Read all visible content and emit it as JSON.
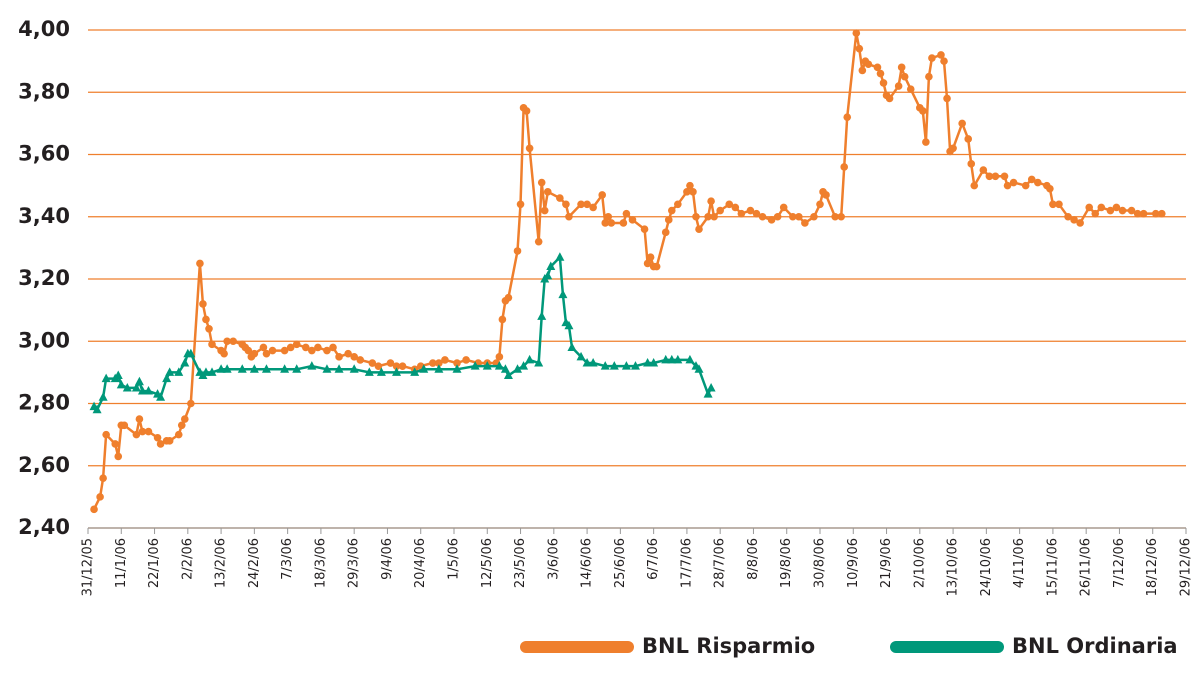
{
  "chart_data": {
    "type": "line",
    "xlim": [
      "31/12/05",
      "29/12/06"
    ],
    "xticks": [
      "31/12/05",
      "11/1/06",
      "22/1/06",
      "2/2/06",
      "13/2/06",
      "24/2/06",
      "7/3/06",
      "18/3/06",
      "29/3/06",
      "9/4/06",
      "20/4/06",
      "1/5/06",
      "12/5/06",
      "23/5/06",
      "3/6/06",
      "14/6/06",
      "25/6/06",
      "6/7/06",
      "17/7/06",
      "28/7/06",
      "8/8/06",
      "19/8/06",
      "30/8/06",
      "10/9/06",
      "21/9/06",
      "2/10/06",
      "13/10/06",
      "24/10/06",
      "4/11/06",
      "15/11/06",
      "26/11/06",
      "7/12/06",
      "18/12/06",
      "29/12/06"
    ],
    "ylim": [
      2.4,
      4.0
    ],
    "yticks": [
      {
        "value": 2.4,
        "label": "2,40"
      },
      {
        "value": 2.6,
        "label": "2,60"
      },
      {
        "value": 2.8,
        "label": "2,80"
      },
      {
        "value": 3.0,
        "label": "3,00"
      },
      {
        "value": 3.2,
        "label": "3,20"
      },
      {
        "value": 3.4,
        "label": "3,40"
      },
      {
        "value": 3.6,
        "label": "3,60"
      },
      {
        "value": 3.8,
        "label": "3,80"
      },
      {
        "value": 4.0,
        "label": "4,00"
      }
    ],
    "grid": true,
    "legend": "bottom",
    "series": [
      {
        "name": "BNL Risparmio",
        "color": "#ef7f2d",
        "marker": "circle",
        "x": [
          "2/1/06",
          "4/1/06",
          "5/1/06",
          "6/1/06",
          "9/1/06",
          "10/1/06",
          "11/1/06",
          "12/1/06",
          "16/1/06",
          "17/1/06",
          "18/1/06",
          "20/1/06",
          "23/1/06",
          "24/1/06",
          "26/1/06",
          "27/1/06",
          "30/1/06",
          "31/1/06",
          "1/2/06",
          "3/2/06",
          "6/2/06",
          "7/2/06",
          "8/2/06",
          "9/2/06",
          "10/2/06",
          "13/2/06",
          "14/2/06",
          "15/2/06",
          "17/2/06",
          "20/2/06",
          "21/2/06",
          "22/2/06",
          "23/2/06",
          "24/2/06",
          "27/2/06",
          "28/2/06",
          "2/3/06",
          "6/3/06",
          "8/3/06",
          "10/3/06",
          "13/3/06",
          "15/3/06",
          "17/3/06",
          "20/3/06",
          "22/3/06",
          "24/3/06",
          "27/3/06",
          "29/3/06",
          "31/3/06",
          "4/4/06",
          "6/4/06",
          "10/4/06",
          "12/4/06",
          "14/4/06",
          "18/4/06",
          "20/4/06",
          "24/4/06",
          "26/4/06",
          "28/4/06",
          "2/5/06",
          "5/5/06",
          "9/5/06",
          "12/5/06",
          "15/5/06",
          "16/5/06",
          "17/5/06",
          "18/5/06",
          "19/5/06",
          "22/5/06",
          "23/5/06",
          "24/5/06",
          "25/5/06",
          "26/5/06",
          "29/5/06",
          "30/5/06",
          "31/5/06",
          "1/6/06",
          "5/6/06",
          "7/6/06",
          "8/6/06",
          "12/6/06",
          "14/6/06",
          "16/6/06",
          "19/6/06",
          "20/6/06",
          "21/6/06",
          "22/6/06",
          "26/6/06",
          "27/6/06",
          "29/6/06",
          "3/7/06",
          "4/7/06",
          "5/7/06",
          "6/7/06",
          "7/7/06",
          "10/7/06",
          "11/7/06",
          "12/7/06",
          "14/7/06",
          "17/7/06",
          "18/7/06",
          "19/7/06",
          "20/7/06",
          "21/7/06",
          "24/7/06",
          "25/7/06",
          "26/7/06",
          "28/7/06",
          "31/7/06",
          "2/8/06",
          "4/8/06",
          "7/8/06",
          "9/8/06",
          "11/8/06",
          "14/8/06",
          "16/8/06",
          "18/8/06",
          "21/8/06",
          "23/8/06",
          "25/8/06",
          "28/8/06",
          "30/8/06",
          "31/8/06",
          "1/9/06",
          "4/9/06",
          "6/9/06",
          "7/9/06",
          "8/9/06",
          "11/9/06",
          "12/9/06",
          "13/9/06",
          "14/9/06",
          "15/9/06",
          "18/9/06",
          "19/9/06",
          "20/9/06",
          "21/9/06",
          "22/9/06",
          "25/9/06",
          "26/9/06",
          "27/9/06",
          "29/9/06",
          "2/10/06",
          "3/10/06",
          "4/10/06",
          "5/10/06",
          "6/10/06",
          "9/10/06",
          "10/10/06",
          "11/10/06",
          "12/10/06",
          "13/10/06",
          "16/10/06",
          "18/10/06",
          "19/10/06",
          "20/10/06",
          "23/10/06",
          "25/10/06",
          "27/10/06",
          "30/10/06",
          "31/10/06",
          "2/11/06",
          "6/11/06",
          "8/11/06",
          "10/11/06",
          "13/11/06",
          "14/11/06",
          "15/11/06",
          "17/11/06",
          "20/11/06",
          "22/11/06",
          "24/11/06",
          "27/11/06",
          "29/11/06",
          "1/12/06",
          "4/12/06",
          "6/12/06",
          "8/12/06",
          "11/12/06",
          "13/12/06",
          "15/12/06",
          "19/12/06",
          "21/12/06"
        ],
        "values": [
          2.46,
          2.5,
          2.56,
          2.7,
          2.67,
          2.63,
          2.73,
          2.73,
          2.7,
          2.75,
          2.71,
          2.71,
          2.69,
          2.67,
          2.68,
          2.68,
          2.7,
          2.73,
          2.75,
          2.8,
          3.25,
          3.12,
          3.07,
          3.04,
          2.99,
          2.97,
          2.96,
          3.0,
          3.0,
          2.99,
          2.98,
          2.97,
          2.95,
          2.96,
          2.98,
          2.96,
          2.97,
          2.97,
          2.98,
          2.99,
          2.98,
          2.97,
          2.98,
          2.97,
          2.98,
          2.95,
          2.96,
          2.95,
          2.94,
          2.93,
          2.92,
          2.93,
          2.92,
          2.92,
          2.91,
          2.92,
          2.93,
          2.93,
          2.94,
          2.93,
          2.94,
          2.93,
          2.93,
          2.93,
          2.95,
          3.07,
          3.13,
          3.14,
          3.29,
          3.44,
          3.75,
          3.74,
          3.62,
          3.32,
          3.51,
          3.42,
          3.48,
          3.46,
          3.44,
          3.4,
          3.44,
          3.44,
          3.43,
          3.47,
          3.38,
          3.4,
          3.38,
          3.38,
          3.41,
          3.39,
          3.36,
          3.25,
          3.27,
          3.24,
          3.24,
          3.35,
          3.39,
          3.42,
          3.44,
          3.48,
          3.5,
          3.48,
          3.4,
          3.36,
          3.4,
          3.45,
          3.4,
          3.42,
          3.44,
          3.43,
          3.41,
          3.42,
          3.41,
          3.4,
          3.39,
          3.4,
          3.43,
          3.4,
          3.4,
          3.38,
          3.4,
          3.44,
          3.48,
          3.47,
          3.4,
          3.4,
          3.56,
          3.72,
          3.99,
          3.94,
          3.87,
          3.9,
          3.89,
          3.88,
          3.86,
          3.83,
          3.79,
          3.78,
          3.82,
          3.88,
          3.85,
          3.81,
          3.75,
          3.74,
          3.64,
          3.85,
          3.91,
          3.92,
          3.9,
          3.78,
          3.61,
          3.62,
          3.7,
          3.65,
          3.57,
          3.5,
          3.55,
          3.53,
          3.53,
          3.53,
          3.5,
          3.51,
          3.5,
          3.52,
          3.51,
          3.5,
          3.49,
          3.44,
          3.44,
          3.4,
          3.39,
          3.38,
          3.43,
          3.41,
          3.43,
          3.42,
          3.43,
          3.42,
          3.42,
          3.41,
          3.41,
          3.41,
          3.41
        ]
      },
      {
        "name": "BNL Ordinaria",
        "color": "#00987a",
        "marker": "triangle",
        "x": [
          "2/1/06",
          "3/1/06",
          "5/1/06",
          "6/1/06",
          "9/1/06",
          "10/1/06",
          "11/1/06",
          "13/1/06",
          "16/1/06",
          "17/1/06",
          "18/1/06",
          "20/1/06",
          "23/1/06",
          "24/1/06",
          "26/1/06",
          "27/1/06",
          "30/1/06",
          "1/2/06",
          "2/2/06",
          "3/2/06",
          "6/2/06",
          "7/2/06",
          "8/2/06",
          "10/2/06",
          "13/2/06",
          "15/2/06",
          "20/2/06",
          "24/2/06",
          "28/2/06",
          "6/3/06",
          "10/3/06",
          "15/3/06",
          "20/3/06",
          "24/3/06",
          "29/3/06",
          "3/4/06",
          "7/4/06",
          "12/4/06",
          "18/4/06",
          "21/4/06",
          "26/4/06",
          "2/5/06",
          "8/5/06",
          "12/5/06",
          "16/5/06",
          "18/5/06",
          "19/5/06",
          "22/5/06",
          "24/5/06",
          "26/5/06",
          "29/5/06",
          "30/5/06",
          "31/5/06",
          "1/6/06",
          "2/6/06",
          "5/6/06",
          "6/6/06",
          "7/6/06",
          "8/6/06",
          "9/6/06",
          "12/6/06",
          "14/6/06",
          "16/6/06",
          "20/6/06",
          "23/6/06",
          "27/6/06",
          "30/6/06",
          "4/7/06",
          "6/7/06",
          "10/7/06",
          "12/7/06",
          "14/7/06",
          "18/7/06",
          "20/7/06",
          "21/7/06",
          "24/7/06",
          "25/7/06"
        ],
        "values": [
          2.79,
          2.78,
          2.82,
          2.88,
          2.88,
          2.89,
          2.86,
          2.85,
          2.85,
          2.87,
          2.84,
          2.84,
          2.83,
          2.82,
          2.88,
          2.9,
          2.9,
          2.93,
          2.96,
          2.96,
          2.9,
          2.89,
          2.9,
          2.9,
          2.91,
          2.91,
          2.91,
          2.91,
          2.91,
          2.91,
          2.91,
          2.92,
          2.91,
          2.91,
          2.91,
          2.9,
          2.9,
          2.9,
          2.9,
          2.91,
          2.91,
          2.91,
          2.92,
          2.92,
          2.92,
          2.91,
          2.89,
          2.91,
          2.92,
          2.94,
          2.93,
          3.08,
          3.2,
          3.21,
          3.24,
          3.27,
          3.15,
          3.06,
          3.05,
          2.98,
          2.95,
          2.93,
          2.93,
          2.92,
          2.92,
          2.92,
          2.92,
          2.93,
          2.93,
          2.94,
          2.94,
          2.94,
          2.94,
          2.92,
          2.91,
          2.83,
          2.85
        ]
      }
    ]
  }
}
